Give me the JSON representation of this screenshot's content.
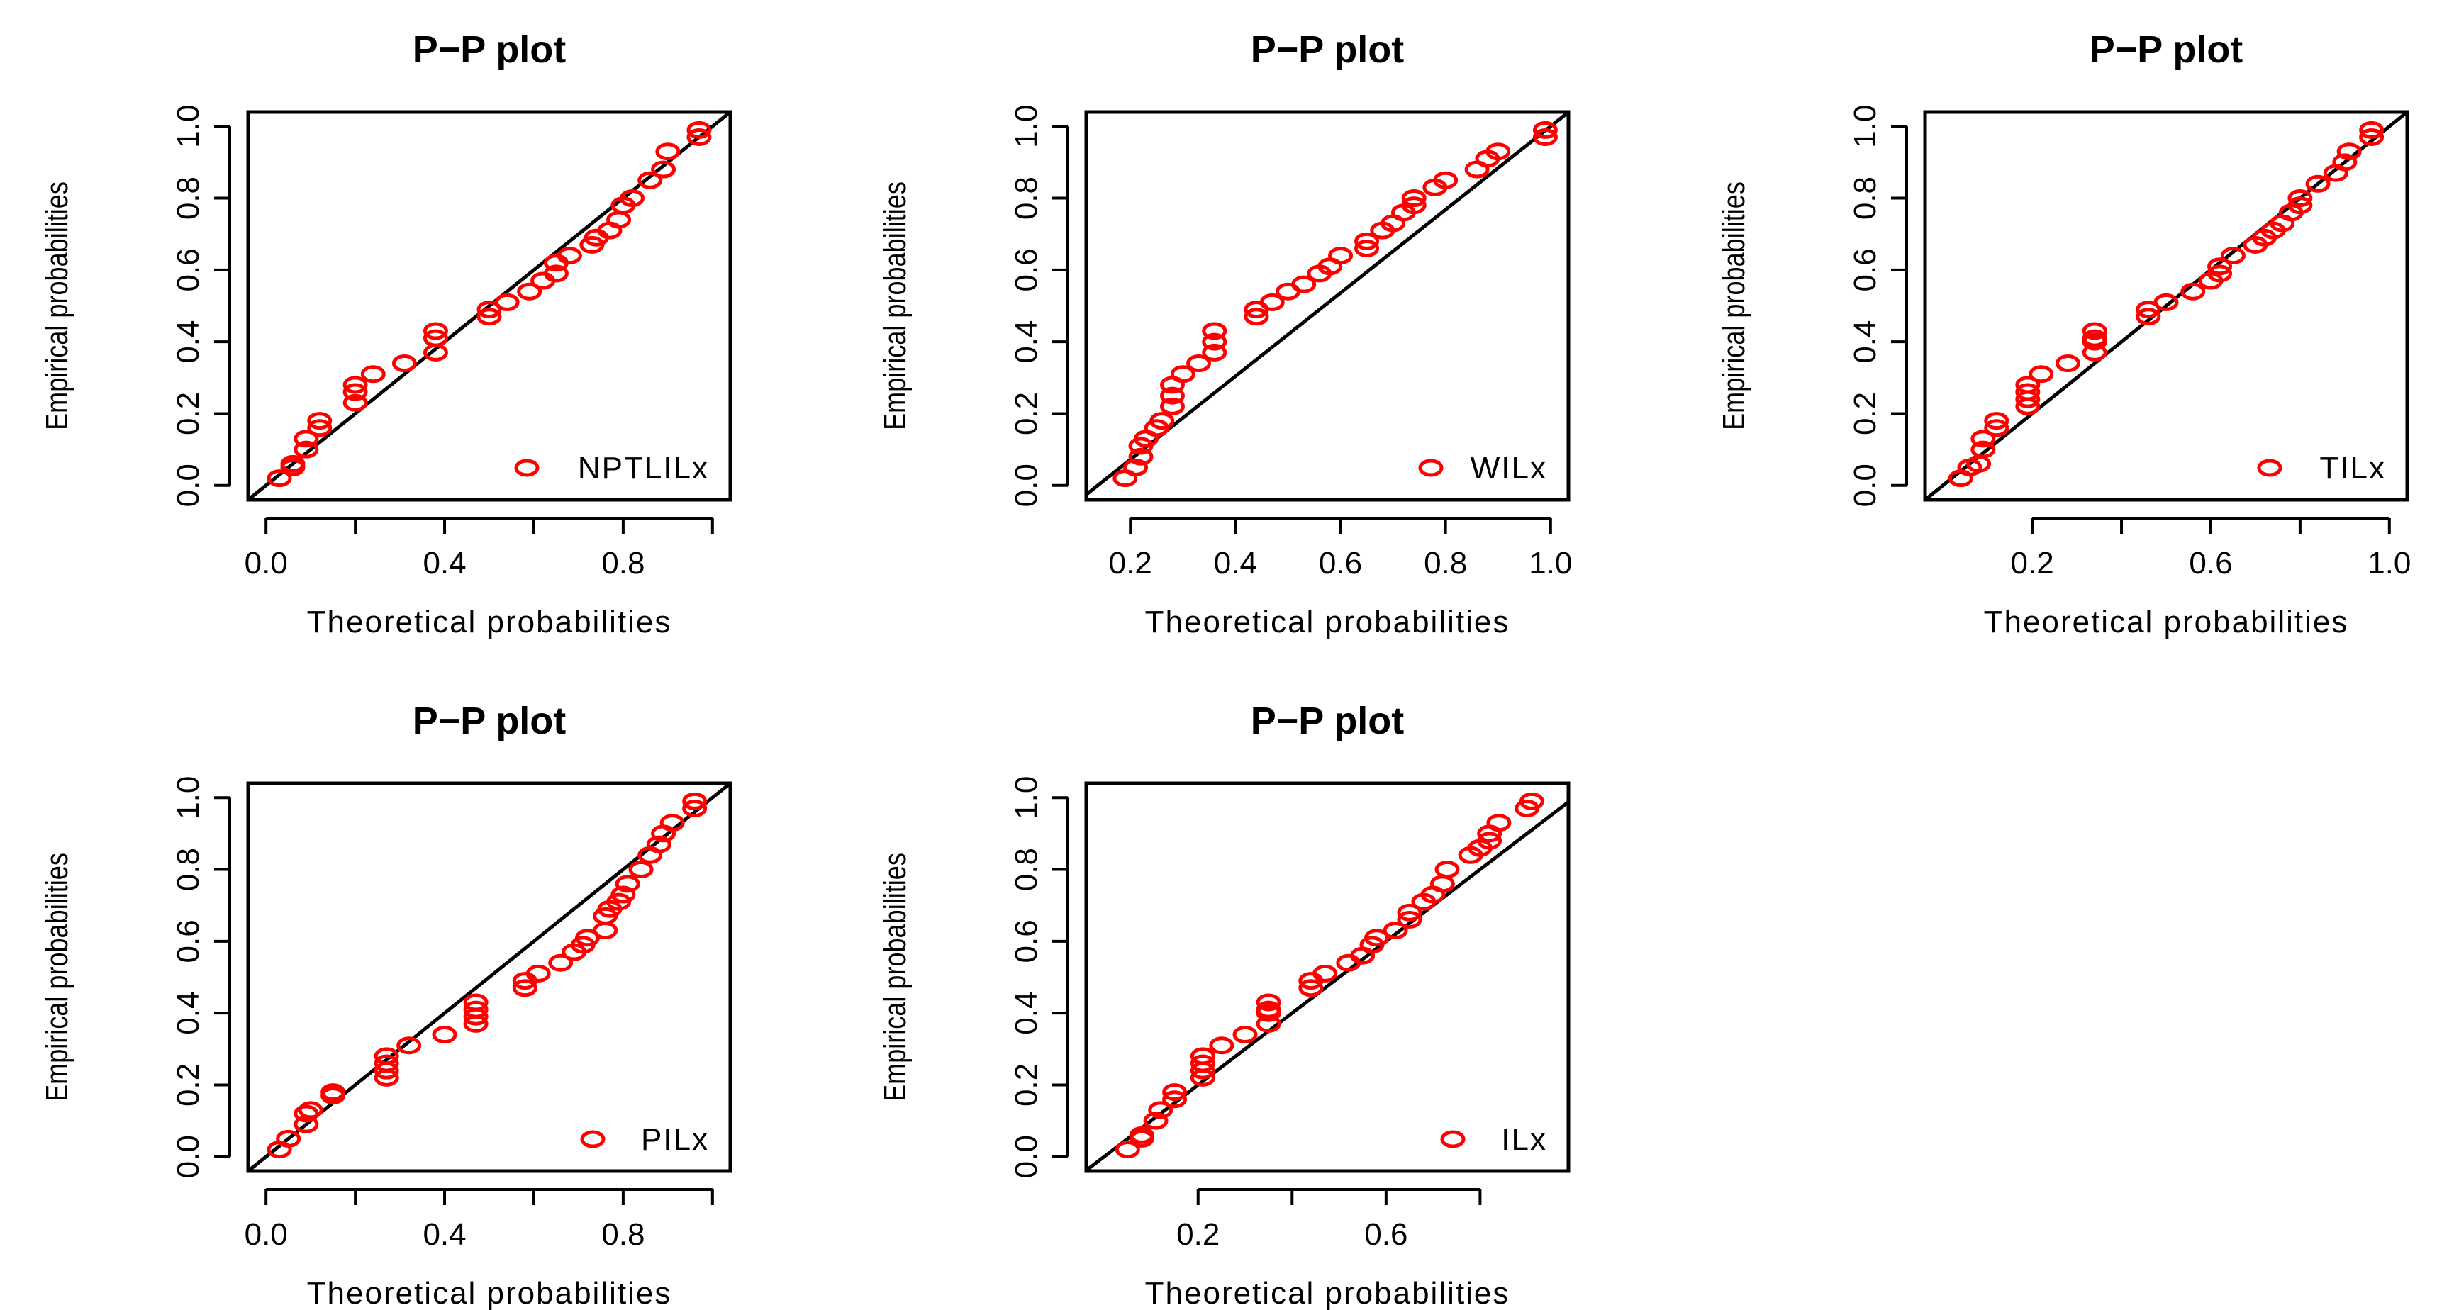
{
  "colors": {
    "points": "#ff0000",
    "line": "#000000",
    "frame": "#000000"
  },
  "chart_data": [
    {
      "type": "scatter",
      "title": "P−P plot",
      "xlabel": "Theoretical probabilities",
      "ylabel": "Empirical probabilities",
      "legend": "NPTLILx",
      "legend_position": "bottom-right",
      "xlim": [
        0.0,
        1.0
      ],
      "ylim": [
        0.0,
        1.0
      ],
      "xticks": [
        0.0,
        0.2,
        0.4,
        0.6,
        0.8,
        1.0
      ],
      "xtick_labels": [
        "0.0",
        "",
        "0.4",
        "",
        "0.8",
        ""
      ],
      "yticks": [
        0.0,
        0.2,
        0.4,
        0.6,
        0.8,
        1.0
      ],
      "ytick_labels": [
        "0.0",
        "0.2",
        "0.4",
        "0.6",
        "0.8",
        "1.0"
      ],
      "reference_line": {
        "intercept": 0.0,
        "slope": 1.0
      },
      "x": [
        0.03,
        0.06,
        0.06,
        0.09,
        0.09,
        0.12,
        0.12,
        0.2,
        0.2,
        0.2,
        0.24,
        0.31,
        0.38,
        0.38,
        0.38,
        0.5,
        0.5,
        0.54,
        0.59,
        0.62,
        0.65,
        0.65,
        0.68,
        0.73,
        0.74,
        0.77,
        0.79,
        0.8,
        0.82,
        0.86,
        0.89,
        0.9,
        0.97,
        0.97
      ],
      "y": [
        0.02,
        0.05,
        0.06,
        0.1,
        0.13,
        0.16,
        0.18,
        0.23,
        0.26,
        0.28,
        0.31,
        0.34,
        0.37,
        0.41,
        0.43,
        0.47,
        0.49,
        0.51,
        0.54,
        0.57,
        0.59,
        0.62,
        0.64,
        0.67,
        0.69,
        0.71,
        0.74,
        0.78,
        0.8,
        0.85,
        0.88,
        0.93,
        0.97,
        0.99
      ]
    },
    {
      "type": "scatter",
      "title": "P−P plot",
      "xlabel": "Theoretical probabilities",
      "ylabel": "Empirical probabilities",
      "legend": "WILx",
      "legend_position": "bottom-right",
      "xlim": [
        0.15,
        1.0
      ],
      "ylim": [
        0.0,
        1.0
      ],
      "xticks": [
        0.2,
        0.4,
        0.6,
        0.8,
        1.0
      ],
      "xtick_labels": [
        "0.2",
        "0.4",
        "0.6",
        "0.8",
        "1.0"
      ],
      "yticks": [
        0.0,
        0.2,
        0.4,
        0.6,
        0.8,
        1.0
      ],
      "ytick_labels": [
        "0.0",
        "0.2",
        "0.4",
        "0.6",
        "0.8",
        "1.0"
      ],
      "reference_line": {
        "intercept": -0.16,
        "slope": 1.16
      },
      "x": [
        0.19,
        0.21,
        0.22,
        0.22,
        0.23,
        0.25,
        0.26,
        0.28,
        0.28,
        0.28,
        0.3,
        0.33,
        0.36,
        0.36,
        0.36,
        0.44,
        0.44,
        0.47,
        0.5,
        0.53,
        0.56,
        0.58,
        0.6,
        0.65,
        0.65,
        0.68,
        0.7,
        0.72,
        0.74,
        0.74,
        0.78,
        0.8,
        0.86,
        0.88,
        0.9,
        0.99,
        0.99
      ],
      "y": [
        0.02,
        0.05,
        0.08,
        0.11,
        0.13,
        0.16,
        0.18,
        0.22,
        0.25,
        0.28,
        0.31,
        0.34,
        0.37,
        0.4,
        0.43,
        0.47,
        0.49,
        0.51,
        0.54,
        0.56,
        0.59,
        0.61,
        0.64,
        0.66,
        0.68,
        0.71,
        0.73,
        0.76,
        0.78,
        0.8,
        0.83,
        0.85,
        0.88,
        0.91,
        0.93,
        0.97,
        0.99
      ]
    },
    {
      "type": "scatter",
      "title": "P−P plot",
      "xlabel": "Theoretical probabilities",
      "ylabel": "Empirical probabilities",
      "legend": "TILx",
      "legend_position": "bottom-right",
      "xlim": [
        0.0,
        1.0
      ],
      "ylim": [
        0.0,
        1.0
      ],
      "xticks": [
        0.2,
        0.4,
        0.6,
        0.8,
        1.0
      ],
      "xtick_labels": [
        "0.2",
        "",
        "0.6",
        "",
        "1.0"
      ],
      "yticks": [
        0.0,
        0.2,
        0.4,
        0.6,
        0.8,
        1.0
      ],
      "ytick_labels": [
        "0.0",
        "0.2",
        "0.4",
        "0.6",
        "0.8",
        "1.0"
      ],
      "reference_line": {
        "intercept": 0.0,
        "slope": 1.0
      },
      "x": [
        0.04,
        0.06,
        0.08,
        0.09,
        0.09,
        0.12,
        0.12,
        0.19,
        0.19,
        0.19,
        0.19,
        0.22,
        0.28,
        0.34,
        0.34,
        0.34,
        0.34,
        0.46,
        0.46,
        0.5,
        0.56,
        0.6,
        0.62,
        0.62,
        0.65,
        0.7,
        0.72,
        0.74,
        0.76,
        0.78,
        0.8,
        0.8,
        0.84,
        0.88,
        0.9,
        0.91,
        0.96,
        0.96
      ],
      "y": [
        0.02,
        0.05,
        0.06,
        0.1,
        0.13,
        0.16,
        0.18,
        0.22,
        0.24,
        0.26,
        0.28,
        0.31,
        0.34,
        0.37,
        0.4,
        0.41,
        0.43,
        0.47,
        0.49,
        0.51,
        0.54,
        0.57,
        0.59,
        0.61,
        0.64,
        0.67,
        0.69,
        0.71,
        0.73,
        0.76,
        0.78,
        0.8,
        0.84,
        0.87,
        0.9,
        0.93,
        0.97,
        0.99
      ]
    },
    {
      "type": "scatter",
      "title": "P−P plot",
      "xlabel": "Theoretical probabilities",
      "ylabel": "Empirical probabilities",
      "legend": "PILx",
      "legend_position": "bottom-right",
      "xlim": [
        0.0,
        1.0
      ],
      "ylim": [
        0.0,
        1.0
      ],
      "xticks": [
        0.0,
        0.2,
        0.4,
        0.6,
        0.8,
        1.0
      ],
      "xtick_labels": [
        "0.0",
        "",
        "0.4",
        "",
        "0.8",
        ""
      ],
      "yticks": [
        0.0,
        0.2,
        0.4,
        0.6,
        0.8,
        1.0
      ],
      "ytick_labels": [
        "0.0",
        "0.2",
        "0.4",
        "0.6",
        "0.8",
        "1.0"
      ],
      "reference_line": {
        "intercept": 0.0,
        "slope": 1.0
      },
      "x": [
        0.03,
        0.05,
        0.09,
        0.09,
        0.1,
        0.15,
        0.15,
        0.27,
        0.27,
        0.27,
        0.27,
        0.32,
        0.4,
        0.47,
        0.47,
        0.47,
        0.47,
        0.58,
        0.58,
        0.61,
        0.66,
        0.69,
        0.71,
        0.72,
        0.76,
        0.76,
        0.77,
        0.79,
        0.8,
        0.81,
        0.84,
        0.86,
        0.88,
        0.89,
        0.91,
        0.96,
        0.96
      ],
      "y": [
        0.02,
        0.05,
        0.09,
        0.12,
        0.13,
        0.17,
        0.18,
        0.22,
        0.24,
        0.26,
        0.28,
        0.31,
        0.34,
        0.37,
        0.39,
        0.41,
        0.43,
        0.47,
        0.49,
        0.51,
        0.54,
        0.57,
        0.59,
        0.61,
        0.63,
        0.67,
        0.69,
        0.71,
        0.73,
        0.76,
        0.8,
        0.84,
        0.87,
        0.9,
        0.93,
        0.97,
        0.99
      ]
    },
    {
      "type": "scatter",
      "title": "P−P plot",
      "xlabel": "Theoretical probabilities",
      "ylabel": "Empirical probabilities",
      "legend": "ILx",
      "legend_position": "bottom-right",
      "xlim": [
        0.0,
        0.95
      ],
      "ylim": [
        0.0,
        1.0
      ],
      "xticks": [
        0.2,
        0.4,
        0.6,
        0.8
      ],
      "xtick_labels": [
        "0.2",
        "",
        "0.6",
        ""
      ],
      "yticks": [
        0.0,
        0.2,
        0.4,
        0.6,
        0.8,
        1.0
      ],
      "ytick_labels": [
        "0.0",
        "0.2",
        "0.4",
        "0.6",
        "0.8",
        "1.0"
      ],
      "reference_line": {
        "intercept": 0.0,
        "slope": 1.0
      },
      "x": [
        0.05,
        0.08,
        0.08,
        0.11,
        0.12,
        0.15,
        0.15,
        0.21,
        0.21,
        0.21,
        0.21,
        0.25,
        0.3,
        0.35,
        0.35,
        0.35,
        0.35,
        0.44,
        0.44,
        0.47,
        0.52,
        0.55,
        0.57,
        0.58,
        0.62,
        0.65,
        0.65,
        0.68,
        0.7,
        0.72,
        0.73,
        0.78,
        0.8,
        0.82,
        0.82,
        0.84,
        0.9,
        0.91
      ],
      "y": [
        0.02,
        0.05,
        0.06,
        0.1,
        0.13,
        0.16,
        0.18,
        0.22,
        0.24,
        0.26,
        0.28,
        0.31,
        0.34,
        0.37,
        0.4,
        0.41,
        0.43,
        0.47,
        0.49,
        0.51,
        0.54,
        0.56,
        0.59,
        0.61,
        0.63,
        0.66,
        0.68,
        0.71,
        0.73,
        0.76,
        0.8,
        0.84,
        0.86,
        0.88,
        0.9,
        0.93,
        0.97,
        0.99
      ]
    }
  ]
}
